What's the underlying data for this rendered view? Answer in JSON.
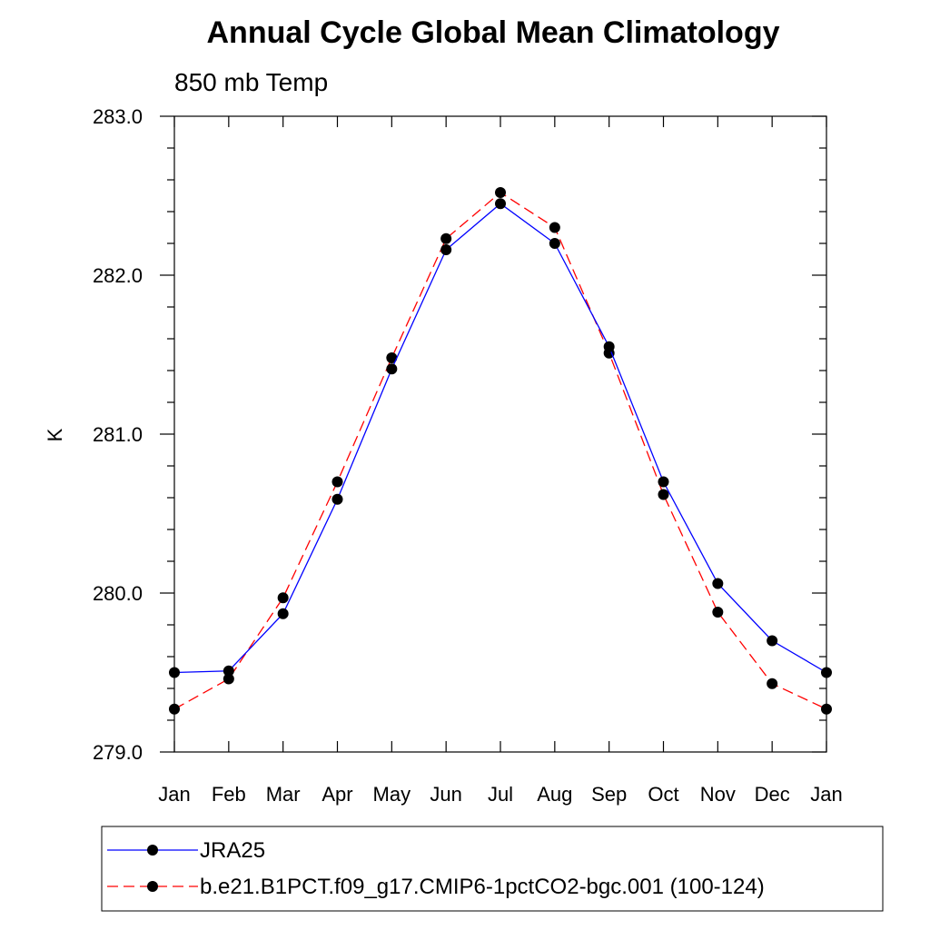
{
  "chart_data": {
    "type": "line",
    "title": "Annual Cycle Global Mean Climatology",
    "subtitle": "850 mb Temp",
    "xlabel": "",
    "ylabel": "K",
    "categories": [
      "Jan",
      "Feb",
      "Mar",
      "Apr",
      "May",
      "Jun",
      "Jul",
      "Aug",
      "Sep",
      "Oct",
      "Nov",
      "Dec",
      "Jan"
    ],
    "ylim": [
      279.0,
      283.0
    ],
    "yticks": [
      "279.0",
      "280.0",
      "281.0",
      "282.0",
      "283.0"
    ],
    "grid": false,
    "legend_position": "bottom",
    "series": [
      {
        "name": "JRA25",
        "color": "#0000ff",
        "dash": "solid",
        "values": [
          279.5,
          279.51,
          279.87,
          280.59,
          281.41,
          282.16,
          282.45,
          282.2,
          281.55,
          280.7,
          280.06,
          279.7,
          279.5
        ]
      },
      {
        "name": "b.e21.B1PCT.f09_g17.CMIP6-1pctCO2-bgc.001 (100-124)",
        "color": "#ff0000",
        "dash": "dashed",
        "values": [
          279.27,
          279.46,
          279.97,
          280.7,
          281.48,
          282.23,
          282.52,
          282.3,
          281.51,
          280.62,
          279.88,
          279.43,
          279.27
        ]
      }
    ]
  }
}
